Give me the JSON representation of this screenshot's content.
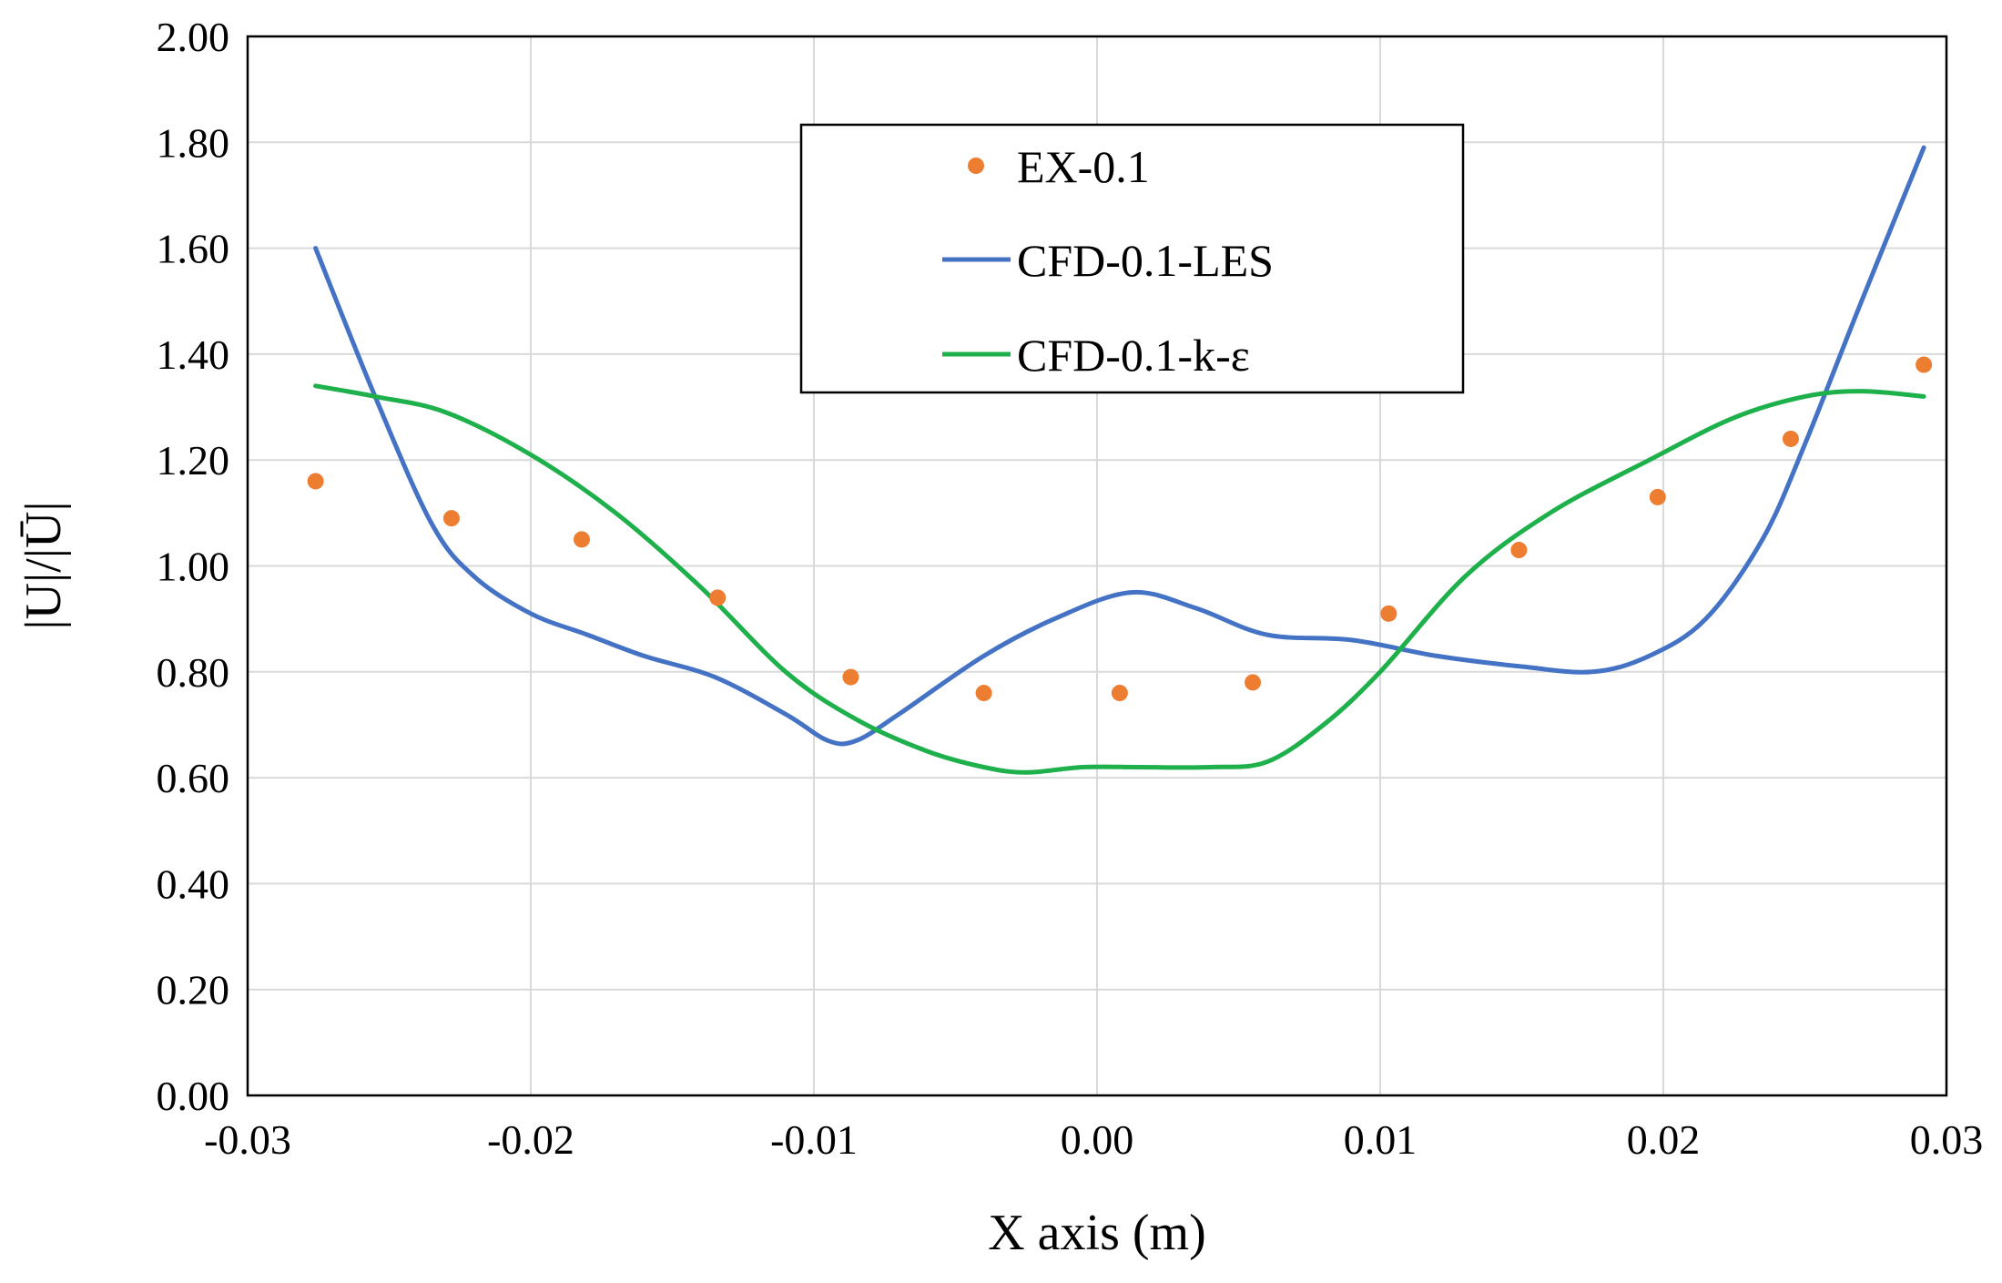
{
  "chart_data": {
    "type": "scatter",
    "title": "",
    "xlabel": "X axis (m)",
    "ylabel": "|U|/|Ū|",
    "xlim": [
      -0.03,
      0.03
    ],
    "ylim": [
      0,
      2
    ],
    "grid": true,
    "legend_position": "top-center",
    "x_ticks": [
      "-0.03",
      "-0.02",
      "-0.01",
      "0.00",
      "0.01",
      "0.02",
      "0.03"
    ],
    "y_ticks": [
      "0.00",
      "0.20",
      "0.40",
      "0.60",
      "0.80",
      "1.00",
      "1.20",
      "1.40",
      "1.60",
      "1.80",
      "2.00"
    ],
    "series": [
      {
        "name": "EX-0.1",
        "kind": "scatter",
        "color": "#ed7d31",
        "x": [
          -0.0276,
          -0.0228,
          -0.0182,
          -0.0134,
          -0.0087,
          -0.004,
          0.0008,
          0.0055,
          0.0103,
          0.0149,
          0.0198,
          0.0245,
          0.0292
        ],
        "y": [
          1.16,
          1.09,
          1.05,
          0.94,
          0.79,
          0.76,
          0.76,
          0.78,
          0.91,
          1.03,
          1.13,
          1.24,
          1.38
        ]
      },
      {
        "name": "CFD-0.1-LES",
        "kind": "line",
        "color": "#4472c4",
        "x": [
          -0.0276,
          -0.0255,
          -0.0235,
          -0.022,
          -0.02,
          -0.018,
          -0.016,
          -0.0135,
          -0.011,
          -0.0095,
          -0.0085,
          -0.007,
          -0.004,
          -0.0015,
          0.0012,
          0.0035,
          0.006,
          0.009,
          0.012,
          0.015,
          0.0175,
          0.0195,
          0.0215,
          0.0235,
          0.025,
          0.027,
          0.0292
        ],
        "y": [
          1.6,
          1.32,
          1.08,
          0.98,
          0.91,
          0.87,
          0.83,
          0.79,
          0.72,
          0.67,
          0.67,
          0.72,
          0.83,
          0.9,
          0.95,
          0.92,
          0.87,
          0.86,
          0.83,
          0.81,
          0.8,
          0.83,
          0.9,
          1.05,
          1.23,
          1.5,
          1.79
        ]
      },
      {
        "name": "CFD-0.1-k-ε",
        "kind": "line",
        "color": "#1db04b",
        "x": [
          -0.0276,
          -0.0255,
          -0.023,
          -0.02,
          -0.017,
          -0.014,
          -0.011,
          -0.0085,
          -0.006,
          -0.004,
          -0.0025,
          -0.0005,
          0.0015,
          0.004,
          0.006,
          0.008,
          0.01,
          0.013,
          0.016,
          0.0195,
          0.0225,
          0.025,
          0.027,
          0.0292
        ],
        "y": [
          1.34,
          1.32,
          1.29,
          1.21,
          1.1,
          0.96,
          0.8,
          0.71,
          0.65,
          0.62,
          0.61,
          0.62,
          0.62,
          0.62,
          0.63,
          0.7,
          0.8,
          0.98,
          1.1,
          1.2,
          1.28,
          1.32,
          1.33,
          1.32
        ]
      }
    ]
  }
}
